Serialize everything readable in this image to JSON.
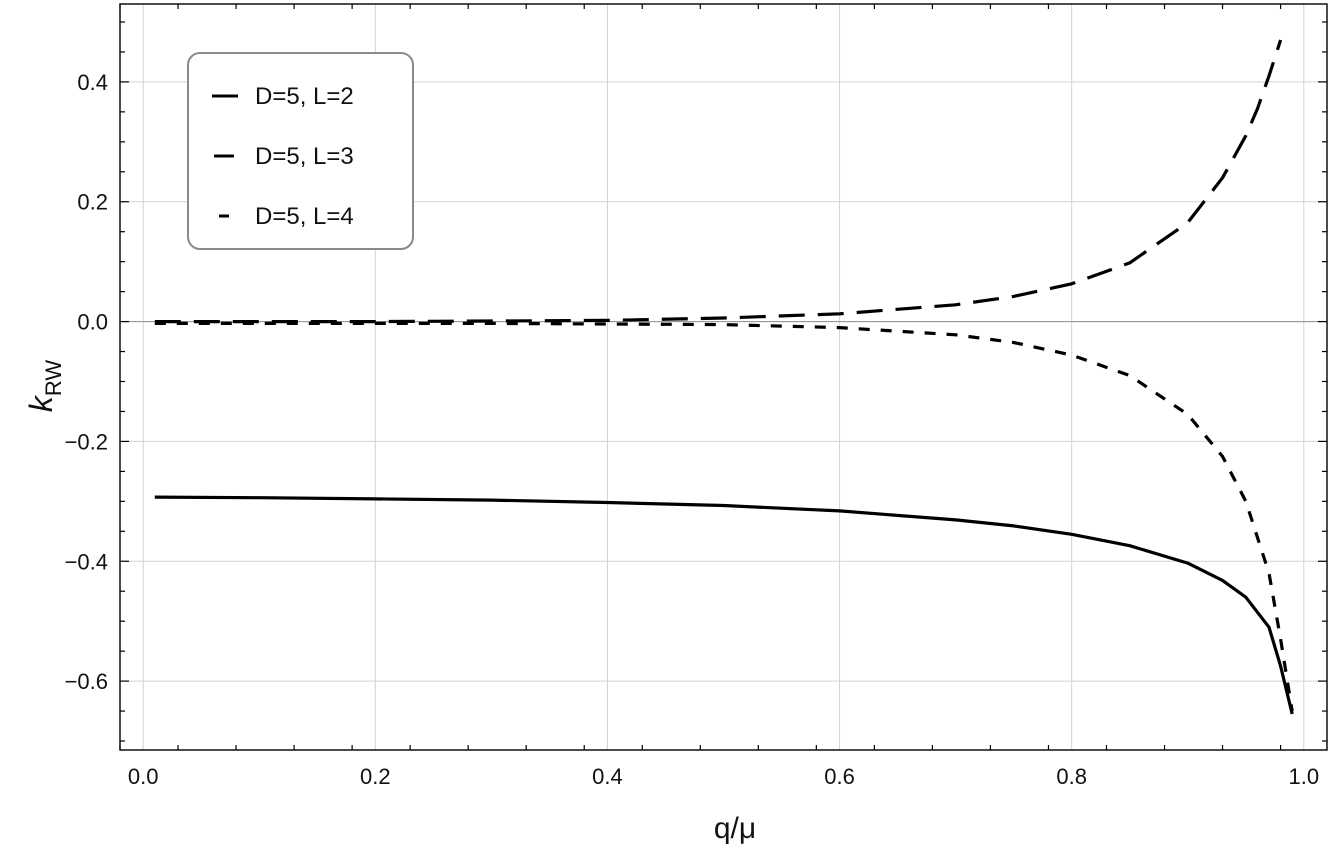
{
  "chart_data": {
    "type": "line",
    "xlabel": "q/μ",
    "ylabel_main": "k",
    "ylabel_sub": "RW",
    "xlim": [
      -0.02,
      1.02
    ],
    "ylim": [
      -0.715,
      0.53
    ],
    "xticks": [
      0.0,
      0.2,
      0.4,
      0.6,
      0.8,
      1.0
    ],
    "xtick_labels": [
      "0.0",
      "0.2",
      "0.4",
      "0.6",
      "0.8",
      "1.0"
    ],
    "yticks": [
      0.4,
      0.2,
      0.0,
      -0.2,
      -0.4,
      -0.6
    ],
    "ytick_labels": [
      "0.4",
      "0.2",
      "0.0",
      "−0.2",
      "−0.4",
      "−0.6"
    ],
    "grid": true,
    "legend_position": "top-left",
    "series": [
      {
        "name": "D=5, L=2",
        "style": "solid",
        "x": [
          0.01,
          0.1,
          0.2,
          0.3,
          0.4,
          0.5,
          0.6,
          0.7,
          0.75,
          0.8,
          0.85,
          0.9,
          0.93,
          0.95,
          0.97,
          0.98,
          0.99
        ],
        "y": [
          -0.293,
          -0.294,
          -0.296,
          -0.298,
          -0.302,
          -0.307,
          -0.316,
          -0.331,
          -0.341,
          -0.355,
          -0.374,
          -0.403,
          -0.432,
          -0.46,
          -0.51,
          -0.575,
          -0.655
        ]
      },
      {
        "name": "D=5, L=3",
        "style": "dashed",
        "x": [
          0.01,
          0.1,
          0.2,
          0.3,
          0.4,
          0.5,
          0.6,
          0.7,
          0.75,
          0.8,
          0.85,
          0.9,
          0.93,
          0.95,
          0.96,
          0.97,
          0.98
        ],
        "y": [
          0.0,
          0.0,
          0.0,
          0.001,
          0.002,
          0.006,
          0.013,
          0.028,
          0.042,
          0.063,
          0.098,
          0.165,
          0.24,
          0.31,
          0.355,
          0.41,
          0.47
        ]
      },
      {
        "name": "D=5, L=4",
        "style": "short-dashed",
        "x": [
          0.01,
          0.1,
          0.2,
          0.3,
          0.4,
          0.5,
          0.6,
          0.7,
          0.75,
          0.8,
          0.85,
          0.9,
          0.93,
          0.95,
          0.97,
          0.98,
          0.99
        ],
        "y": [
          -0.003,
          -0.003,
          -0.003,
          -0.003,
          -0.004,
          -0.005,
          -0.01,
          -0.022,
          -0.035,
          -0.056,
          -0.09,
          -0.155,
          -0.225,
          -0.3,
          -0.42,
          -0.53,
          -0.65
        ]
      }
    ]
  }
}
